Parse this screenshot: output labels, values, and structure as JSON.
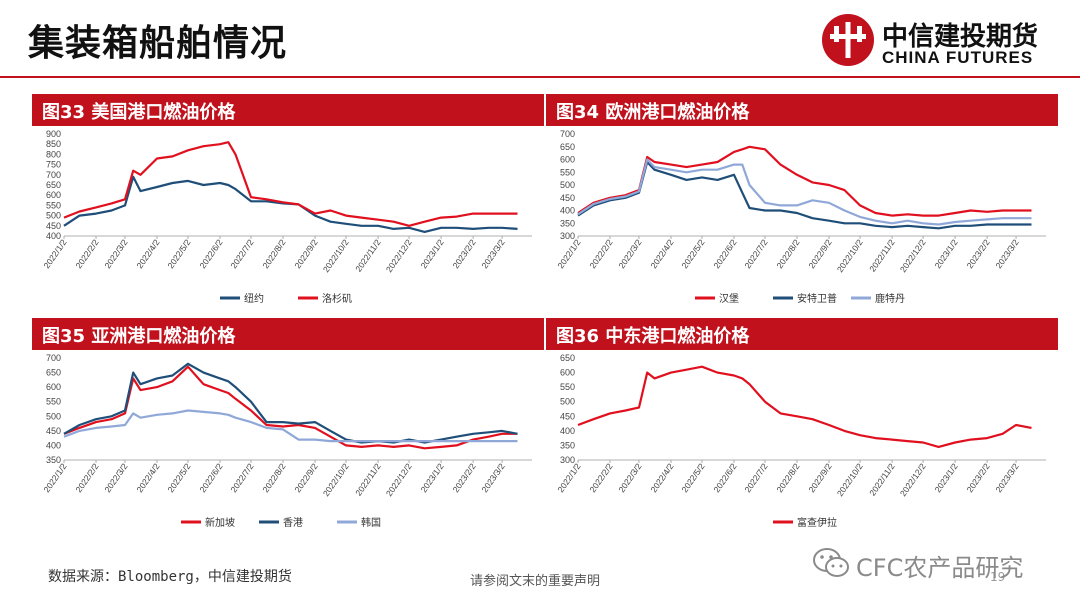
{
  "header": {
    "title": "集装箱船舶情况"
  },
  "logo": {
    "cn": "中信建投期货",
    "en": "CHINA FUTURES",
    "icon": "citic-logo-icon",
    "color": "#c0111c"
  },
  "footer": {
    "source": "数据来源：Bloomberg，中信建投期货",
    "disclaimer": "请参阅文末的重要声明",
    "page": "19"
  },
  "watermark": {
    "text": "CFC农产品研究",
    "icon": "wechat-icon"
  },
  "x_ticks": [
    "2022/1/2",
    "2022/2/2",
    "2022/3/2",
    "2022/4/2",
    "2022/5/2",
    "2022/6/2",
    "2022/7/2",
    "2022/8/2",
    "2022/9/2",
    "2022/10/2",
    "2022/11/2",
    "2022/12/2",
    "2023/1/2",
    "2023/2/2",
    "2023/3/2"
  ],
  "chart_data": [
    {
      "title": "图33 美国港口燃油价格",
      "type": "line",
      "ylim": [
        400,
        900
      ],
      "yticks": [
        400,
        450,
        500,
        550,
        600,
        650,
        700,
        750,
        800,
        850,
        900
      ],
      "x": [
        "2022/1/2",
        "2022/1/17",
        "2022/2/2",
        "2022/2/17",
        "2022/3/2",
        "2022/3/10",
        "2022/3/17",
        "2022/4/2",
        "2022/4/17",
        "2022/5/2",
        "2022/5/17",
        "2022/6/2",
        "2022/6/10",
        "2022/6/17",
        "2022/7/2",
        "2022/7/17",
        "2022/8/2",
        "2022/8/17",
        "2022/9/2",
        "2022/9/17",
        "2022/10/2",
        "2022/10/17",
        "2022/11/2",
        "2022/11/17",
        "2022/12/2",
        "2022/12/17",
        "2023/1/2",
        "2023/1/17",
        "2023/2/2",
        "2023/2/17",
        "2023/3/2",
        "2023/3/17"
      ],
      "series": [
        {
          "name": "纽约",
          "color": "#1f4e79",
          "values": [
            450,
            500,
            510,
            525,
            550,
            690,
            620,
            640,
            660,
            670,
            650,
            660,
            650,
            630,
            570,
            570,
            560,
            555,
            500,
            470,
            460,
            450,
            450,
            435,
            440,
            420,
            440,
            440,
            435,
            440,
            440,
            435
          ]
        },
        {
          "name": "洛杉矶",
          "color": "#e0101f",
          "values": [
            490,
            520,
            540,
            560,
            580,
            720,
            700,
            780,
            790,
            820,
            840,
            850,
            860,
            800,
            590,
            580,
            565,
            555,
            510,
            525,
            500,
            490,
            480,
            470,
            450,
            470,
            490,
            495,
            510,
            510,
            510,
            510
          ]
        }
      ]
    },
    {
      "title": "图34 欧洲港口燃油价格",
      "type": "line",
      "ylim": [
        300,
        700
      ],
      "yticks": [
        300,
        350,
        400,
        450,
        500,
        550,
        600,
        650,
        700
      ],
      "x": [
        "2022/1/2",
        "2022/1/17",
        "2022/2/2",
        "2022/2/17",
        "2022/3/2",
        "2022/3/10",
        "2022/3/17",
        "2022/4/2",
        "2022/4/17",
        "2022/5/2",
        "2022/5/17",
        "2022/6/2",
        "2022/6/10",
        "2022/6/17",
        "2022/7/2",
        "2022/7/17",
        "2022/8/2",
        "2022/8/17",
        "2022/9/2",
        "2022/9/17",
        "2022/10/2",
        "2022/10/17",
        "2022/11/2",
        "2022/11/17",
        "2022/12/2",
        "2022/12/17",
        "2023/1/2",
        "2023/1/17",
        "2023/2/2",
        "2023/2/17",
        "2023/3/2",
        "2023/3/17"
      ],
      "series": [
        {
          "name": "汉堡",
          "color": "#e0101f",
          "values": [
            390,
            430,
            450,
            460,
            480,
            610,
            590,
            580,
            570,
            580,
            590,
            630,
            640,
            650,
            640,
            580,
            540,
            510,
            500,
            480,
            420,
            390,
            380,
            385,
            380,
            380,
            390,
            400,
            395,
            400,
            400,
            400
          ]
        },
        {
          "name": "安特卫普",
          "color": "#1f4e79",
          "values": [
            380,
            420,
            440,
            450,
            470,
            590,
            560,
            540,
            520,
            530,
            520,
            540,
            470,
            410,
            400,
            400,
            390,
            370,
            360,
            350,
            350,
            340,
            335,
            340,
            335,
            330,
            340,
            340,
            345,
            345,
            345,
            345
          ]
        },
        {
          "name": "鹿特丹",
          "color": "#8fa8d8",
          "values": [
            385,
            425,
            445,
            455,
            475,
            600,
            570,
            560,
            550,
            560,
            560,
            580,
            580,
            500,
            430,
            420,
            420,
            440,
            430,
            400,
            375,
            360,
            350,
            360,
            350,
            345,
            355,
            360,
            365,
            370,
            370,
            370
          ]
        }
      ]
    },
    {
      "title": "图35 亚洲港口燃油价格",
      "type": "line",
      "ylim": [
        350,
        700
      ],
      "yticks": [
        350,
        400,
        450,
        500,
        550,
        600,
        650,
        700
      ],
      "x": [
        "2022/1/2",
        "2022/1/17",
        "2022/2/2",
        "2022/2/17",
        "2022/3/2",
        "2022/3/10",
        "2022/3/17",
        "2022/4/2",
        "2022/4/17",
        "2022/5/2",
        "2022/5/17",
        "2022/6/2",
        "2022/6/10",
        "2022/6/17",
        "2022/7/2",
        "2022/7/17",
        "2022/8/2",
        "2022/8/17",
        "2022/9/2",
        "2022/9/17",
        "2022/10/2",
        "2022/10/17",
        "2022/11/2",
        "2022/11/17",
        "2022/12/2",
        "2022/12/17",
        "2023/1/2",
        "2023/1/17",
        "2023/2/2",
        "2023/2/17",
        "2023/3/2",
        "2023/3/17"
      ],
      "series": [
        {
          "name": "新加坡",
          "color": "#e0101f",
          "values": [
            440,
            460,
            480,
            490,
            510,
            630,
            590,
            600,
            620,
            670,
            610,
            590,
            580,
            560,
            520,
            470,
            465,
            470,
            460,
            430,
            400,
            395,
            400,
            395,
            400,
            390,
            395,
            400,
            420,
            430,
            440,
            440
          ]
        },
        {
          "name": "香港",
          "color": "#1f4e79",
          "values": [
            440,
            470,
            490,
            500,
            520,
            650,
            610,
            630,
            640,
            680,
            650,
            630,
            620,
            600,
            550,
            480,
            480,
            475,
            480,
            450,
            420,
            410,
            415,
            410,
            420,
            410,
            420,
            430,
            440,
            445,
            450,
            440
          ]
        },
        {
          "name": "韩国",
          "color": "#8fa8d8",
          "values": [
            430,
            450,
            460,
            465,
            470,
            510,
            495,
            505,
            510,
            520,
            515,
            510,
            505,
            495,
            480,
            460,
            455,
            420,
            420,
            415,
            415,
            415,
            415,
            415,
            415,
            415,
            415,
            415,
            415,
            415,
            415,
            415
          ]
        }
      ]
    },
    {
      "title": "图36 中东港口燃油价格",
      "type": "line",
      "ylim": [
        300,
        650
      ],
      "yticks": [
        300,
        350,
        400,
        450,
        500,
        550,
        600,
        650
      ],
      "x": [
        "2022/1/2",
        "2022/1/17",
        "2022/2/2",
        "2022/2/17",
        "2022/3/2",
        "2022/3/10",
        "2022/3/17",
        "2022/4/2",
        "2022/4/17",
        "2022/5/2",
        "2022/5/17",
        "2022/6/2",
        "2022/6/10",
        "2022/6/17",
        "2022/7/2",
        "2022/7/17",
        "2022/8/2",
        "2022/8/17",
        "2022/9/2",
        "2022/9/17",
        "2022/10/2",
        "2022/10/17",
        "2022/11/2",
        "2022/11/17",
        "2022/12/2",
        "2022/12/17",
        "2023/1/2",
        "2023/1/17",
        "2023/2/2",
        "2023/2/17",
        "2023/3/2",
        "2023/3/17"
      ],
      "series": [
        {
          "name": "富查伊拉",
          "color": "#e0101f",
          "values": [
            420,
            440,
            460,
            470,
            480,
            600,
            580,
            600,
            610,
            620,
            600,
            590,
            580,
            560,
            500,
            460,
            450,
            440,
            420,
            400,
            385,
            375,
            370,
            365,
            360,
            345,
            360,
            370,
            375,
            390,
            420,
            410
          ]
        }
      ]
    }
  ]
}
